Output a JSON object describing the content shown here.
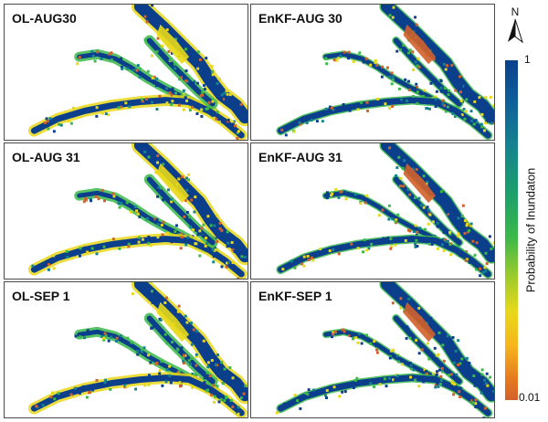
{
  "panels": [
    {
      "id": "p1",
      "title": "OL-AUG30",
      "method": "OL"
    },
    {
      "id": "p2",
      "title": "EnKF-AUG 30",
      "method": "EnKF"
    },
    {
      "id": "p3",
      "title": "OL-AUG 31",
      "method": "OL"
    },
    {
      "id": "p4",
      "title": "EnKF-AUG 31",
      "method": "EnKF"
    },
    {
      "id": "p5",
      "title": "OL-SEP 1",
      "method": "OL"
    },
    {
      "id": "p6",
      "title": "EnKF-SEP 1",
      "method": "EnKF"
    }
  ],
  "colorbar": {
    "title": "Probability of Inundaton",
    "max_label": "1",
    "min_label": "0.01",
    "colors": [
      "#0b3f8c",
      "#14828f",
      "#3bb84a",
      "#e8d81a",
      "#d2612b"
    ]
  },
  "north_arrow": {
    "label": "N",
    "icon": "north-arrow-icon"
  }
}
